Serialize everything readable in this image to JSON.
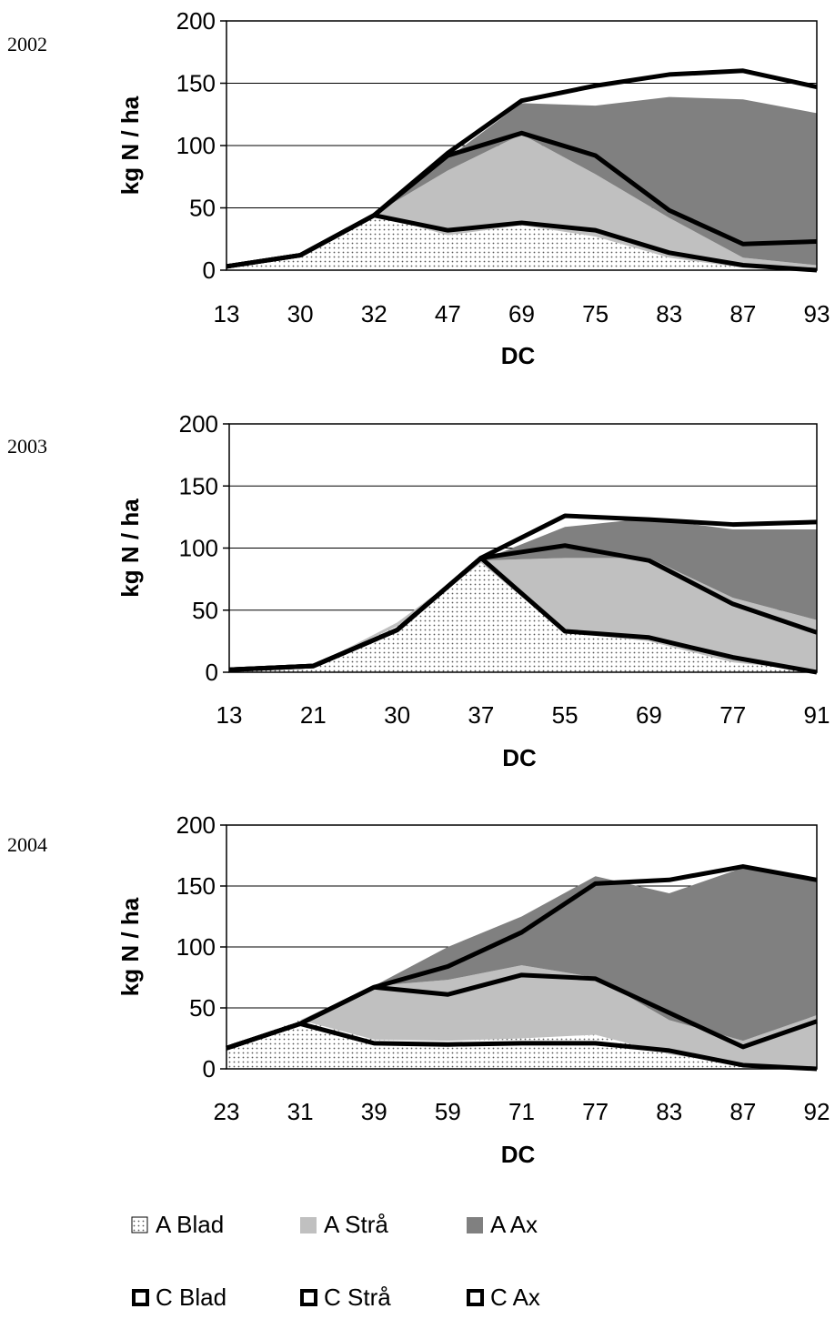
{
  "legend": [
    {
      "label": "A Blad",
      "style": "dotted"
    },
    {
      "label": "A Strå",
      "style": "light-gray"
    },
    {
      "label": "A Ax",
      "style": "dark-gray"
    },
    {
      "label": "C Blad",
      "style": "outline"
    },
    {
      "label": "C Strå",
      "style": "outline"
    },
    {
      "label": "C Ax",
      "style": "outline"
    }
  ],
  "colors": {
    "a_blad_dots": "#555555",
    "a_stra": "#c0c0c0",
    "a_ax": "#808080",
    "c_lines": "#000000"
  },
  "chart_data": [
    {
      "type": "area",
      "year_label": "2002",
      "categories": [
        "13",
        "30",
        "32",
        "47",
        "69",
        "75",
        "83",
        "87",
        "93"
      ],
      "xlabel": "DC",
      "ylabel": "kg N / ha",
      "ylim": [
        0,
        200
      ],
      "yticks": [
        0,
        50,
        100,
        150,
        200
      ],
      "grid": true,
      "stacked_areas": [
        {
          "name": "A Blad",
          "values": [
            3,
            12,
            45,
            28,
            36,
            27,
            10,
            2,
            1
          ]
        },
        {
          "name": "A Strå",
          "values": [
            0,
            0,
            0,
            52,
            73,
            50,
            32,
            8,
            3
          ]
        },
        {
          "name": "A Ax",
          "values": [
            0,
            0,
            0,
            10,
            25,
            55,
            97,
            127,
            122
          ]
        }
      ],
      "cumulative_lines": [
        {
          "name": "C Blad",
          "values": [
            3,
            12,
            44,
            32,
            38,
            32,
            14,
            4,
            0
          ]
        },
        {
          "name": "C Strå",
          "values": [
            3,
            12,
            44,
            92,
            110,
            92,
            48,
            21,
            23
          ]
        },
        {
          "name": "C Ax",
          "values": [
            3,
            12,
            44,
            94,
            136,
            148,
            157,
            160,
            147
          ]
        }
      ]
    },
    {
      "type": "area",
      "year_label": "2003",
      "categories": [
        "13",
        "21",
        "30",
        "37",
        "55",
        "69",
        "77",
        "91"
      ],
      "xlabel": "DC",
      "ylabel": "kg N / ha",
      "ylim": [
        0,
        200
      ],
      "yticks": [
        0,
        50,
        100,
        150,
        200
      ],
      "grid": true,
      "stacked_areas": [
        {
          "name": "A Blad",
          "values": [
            2,
            5,
            37,
            88,
            32,
            25,
            8,
            1
          ]
        },
        {
          "name": "A Strå",
          "values": [
            0,
            0,
            3,
            2,
            60,
            67,
            52,
            41
          ]
        },
        {
          "name": "A Ax",
          "values": [
            0,
            0,
            0,
            0,
            25,
            32,
            55,
            73
          ]
        }
      ],
      "cumulative_lines": [
        {
          "name": "C Blad",
          "values": [
            2,
            5,
            34,
            92,
            33,
            28,
            12,
            0
          ]
        },
        {
          "name": "C Strå",
          "values": [
            2,
            5,
            34,
            92,
            102,
            90,
            55,
            32
          ]
        },
        {
          "name": "C Ax",
          "values": [
            2,
            5,
            34,
            92,
            126,
            123,
            119,
            121
          ]
        }
      ]
    },
    {
      "type": "area",
      "year_label": "2004",
      "categories": [
        "23",
        "31",
        "39",
        "59",
        "71",
        "77",
        "83",
        "87",
        "92"
      ],
      "xlabel": "DC",
      "ylabel": "kg N / ha",
      "ylim": [
        0,
        200
      ],
      "yticks": [
        0,
        50,
        100,
        150,
        200
      ],
      "grid": true,
      "stacked_areas": [
        {
          "name": "A Blad",
          "values": [
            18,
            40,
            24,
            23,
            25,
            28,
            12,
            3,
            1
          ]
        },
        {
          "name": "A Strå",
          "values": [
            0,
            0,
            44,
            50,
            60,
            47,
            28,
            20,
            43
          ]
        },
        {
          "name": "A Ax",
          "values": [
            0,
            0,
            0,
            27,
            40,
            83,
            104,
            142,
            112
          ]
        }
      ],
      "cumulative_lines": [
        {
          "name": "C Blad",
          "values": [
            17,
            37,
            21,
            20,
            21,
            21,
            15,
            3,
            0
          ]
        },
        {
          "name": "C Strå",
          "values": [
            17,
            37,
            67,
            61,
            77,
            74,
            46,
            18,
            39
          ]
        },
        {
          "name": "C Ax",
          "values": [
            17,
            37,
            67,
            84,
            112,
            152,
            155,
            166,
            155
          ]
        }
      ]
    }
  ]
}
